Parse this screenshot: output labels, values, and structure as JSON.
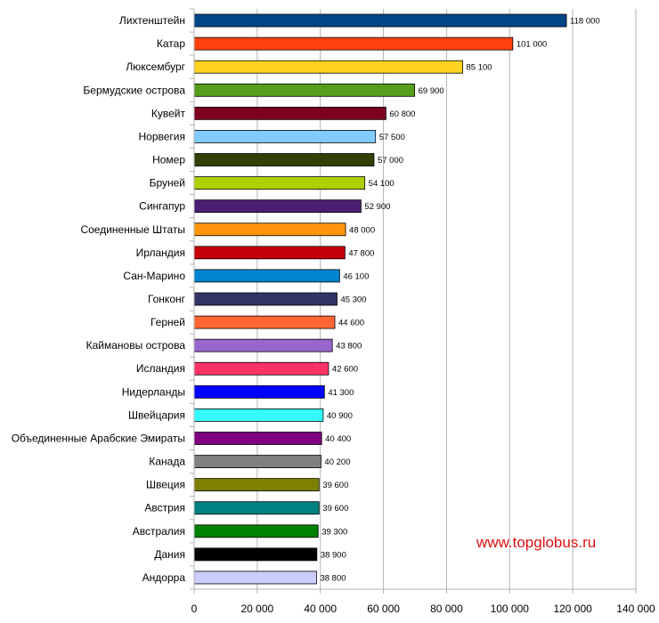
{
  "watermark": "www.topglobus.ru",
  "chart_data": {
    "type": "bar",
    "orientation": "horizontal",
    "title": "",
    "xlabel": "",
    "ylabel": "",
    "xlim": [
      0,
      140000
    ],
    "ticks": [
      0,
      20000,
      40000,
      60000,
      80000,
      100000,
      120000,
      140000
    ],
    "tick_labels": [
      "0",
      "20 000",
      "40 000",
      "60 000",
      "80 000",
      "100 000",
      "120 000",
      "140 000"
    ],
    "grid": "vertical",
    "legend": "none",
    "categories": [
      "Лихтенштейн",
      "Катар",
      "Люксембург",
      "Бермудские острова",
      "Кувейт",
      "Норвегия",
      "Номер",
      "Бруней",
      "Сингапур",
      "Соединенные Штаты",
      "Ирландия",
      "Сан-Марино",
      "Гонконг",
      "Герней",
      "Каймановы острова",
      "Исландия",
      "Нидерланды",
      "Швейцария",
      "Объединенные Арабские Эмираты",
      "Канада",
      "Швеция",
      "Австрия",
      "Австралия",
      "Дания",
      "Андорра"
    ],
    "values": [
      118000,
      101000,
      85100,
      69900,
      60800,
      57500,
      57000,
      54100,
      52900,
      48000,
      47800,
      46100,
      45300,
      44600,
      43800,
      42600,
      41300,
      40900,
      40400,
      40200,
      39600,
      39600,
      39300,
      38900,
      38800
    ],
    "value_labels": [
      "118 000",
      "101 000",
      "85 100",
      "69 900",
      "60 800",
      "57 500",
      "57 000",
      "54 100",
      "52 900",
      "48 000",
      "47 800",
      "46 100",
      "45 300",
      "44 600",
      "43 800",
      "42 600",
      "41 300",
      "40 900",
      "40 400",
      "40 200",
      "39 600",
      "39 600",
      "39 300",
      "38 900",
      "38 800"
    ],
    "colors": [
      "#004586",
      "#ff420e",
      "#ffd320",
      "#579d1c",
      "#7e0021",
      "#83caff",
      "#314004",
      "#aecf00",
      "#4b1f6f",
      "#ff950e",
      "#c5000b",
      "#0084d1",
      "#333366",
      "#ff6633",
      "#9966cc",
      "#ff3366",
      "#0000ff",
      "#33ffff",
      "#800080",
      "#808080",
      "#808000",
      "#008080",
      "#008000",
      "#000000",
      "#ccccff"
    ]
  }
}
